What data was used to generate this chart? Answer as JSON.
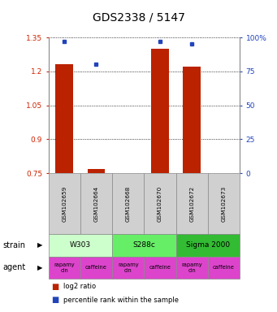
{
  "title": "GDS2338 / 5147",
  "samples": [
    "GSM102659",
    "GSM102664",
    "GSM102668",
    "GSM102670",
    "GSM102672",
    "GSM102673"
  ],
  "log2_ratio": [
    1.23,
    0.77,
    0.75,
    1.3,
    1.22,
    0.75
  ],
  "percentile_rank": [
    97,
    80,
    null,
    97,
    95,
    null
  ],
  "ylim_left": [
    0.75,
    1.35
  ],
  "ylim_right": [
    0,
    100
  ],
  "yticks_left": [
    0.75,
    0.9,
    1.05,
    1.2,
    1.35
  ],
  "yticks_right": [
    0,
    25,
    50,
    75,
    100
  ],
  "ytick_labels_left": [
    "0.75",
    "0.9",
    "1.05",
    "1.2",
    "1.35"
  ],
  "ytick_labels_right": [
    "0",
    "25",
    "50",
    "75",
    "100%"
  ],
  "strains": [
    {
      "label": "W303",
      "cols": [
        0,
        1
      ],
      "color": "#ccffcc"
    },
    {
      "label": "S288c",
      "cols": [
        2,
        3
      ],
      "color": "#66ee66"
    },
    {
      "label": "Sigma 2000",
      "cols": [
        4,
        5
      ],
      "color": "#33bb33"
    }
  ],
  "agents": [
    {
      "label": "rapamycin",
      "col": 0
    },
    {
      "label": "caffeine",
      "col": 1
    },
    {
      "label": "rapamycin",
      "col": 2
    },
    {
      "label": "caffeine",
      "col": 3
    },
    {
      "label": "rapamycin",
      "col": 4
    },
    {
      "label": "caffeine",
      "col": 5
    }
  ],
  "agent_color": "#dd44cc",
  "bar_color": "#bb2200",
  "dot_color": "#2244bb",
  "bar_width": 0.55,
  "baseline": 0.75
}
